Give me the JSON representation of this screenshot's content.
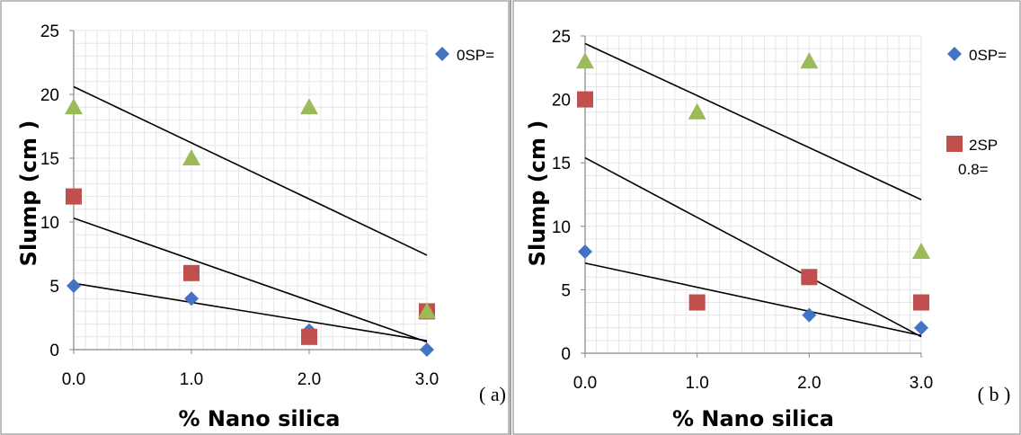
{
  "chart_data": [
    {
      "type": "scatter",
      "panel_label": "( a)",
      "xlabel": "% Nano silica",
      "ylabel": "Slump  (cm )",
      "xlim": [
        0,
        3
      ],
      "ylim": [
        0,
        25
      ],
      "x_ticks": [
        "0.0",
        "1.0",
        "2.0",
        "3.0"
      ],
      "y_ticks": [
        "0",
        "5",
        "10",
        "15",
        "20",
        "25"
      ],
      "grid": true,
      "legend_position": "right",
      "legend": [
        {
          "marker": "diamond",
          "color": "#4472C4",
          "label": "0SP="
        }
      ],
      "series": [
        {
          "marker": "diamond",
          "color": "#4472C4",
          "x": [
            0,
            1,
            2,
            3
          ],
          "y": [
            5,
            4,
            1.5,
            0
          ],
          "trend": [
            5.2,
            0.7
          ]
        },
        {
          "marker": "square",
          "color": "#C0504D",
          "x": [
            0,
            1,
            2,
            3
          ],
          "y": [
            12,
            6,
            1,
            3
          ],
          "trend": [
            10.3,
            0.6
          ]
        },
        {
          "marker": "triangle",
          "color": "#9BBB59",
          "x": [
            0,
            1,
            2,
            3
          ],
          "y": [
            19,
            15,
            19,
            3
          ],
          "trend": [
            20.6,
            7.4
          ]
        }
      ]
    },
    {
      "type": "scatter",
      "panel_label": "( b )",
      "xlabel": "% Nano silica",
      "ylabel": "Slump  (cm )",
      "xlim": [
        0,
        3
      ],
      "ylim": [
        0,
        25
      ],
      "x_ticks": [
        "0.0",
        "1.0",
        "2.0",
        "3.0"
      ],
      "y_ticks": [
        "0",
        "5",
        "10",
        "15",
        "20",
        "25"
      ],
      "grid": true,
      "legend_position": "right",
      "legend": [
        {
          "marker": "diamond",
          "color": "#4472C4",
          "label": "0SP="
        },
        {
          "marker": "square",
          "color": "#C0504D",
          "label": "2SP",
          "label2": "0.8="
        }
      ],
      "series": [
        {
          "marker": "diamond",
          "color": "#4472C4",
          "x": [
            0,
            1,
            2,
            3
          ],
          "y": [
            8,
            4,
            3,
            2
          ],
          "trend": [
            7.1,
            1.4
          ]
        },
        {
          "marker": "square",
          "color": "#C0504D",
          "x": [
            0,
            1,
            2,
            3
          ],
          "y": [
            20,
            4,
            6,
            4
          ],
          "trend": [
            15.4,
            1.3
          ]
        },
        {
          "marker": "triangle",
          "color": "#9BBB59",
          "x": [
            0,
            1,
            2,
            3
          ],
          "y": [
            23,
            19,
            23,
            8
          ],
          "trend": [
            24.4,
            12.1
          ]
        }
      ]
    }
  ]
}
